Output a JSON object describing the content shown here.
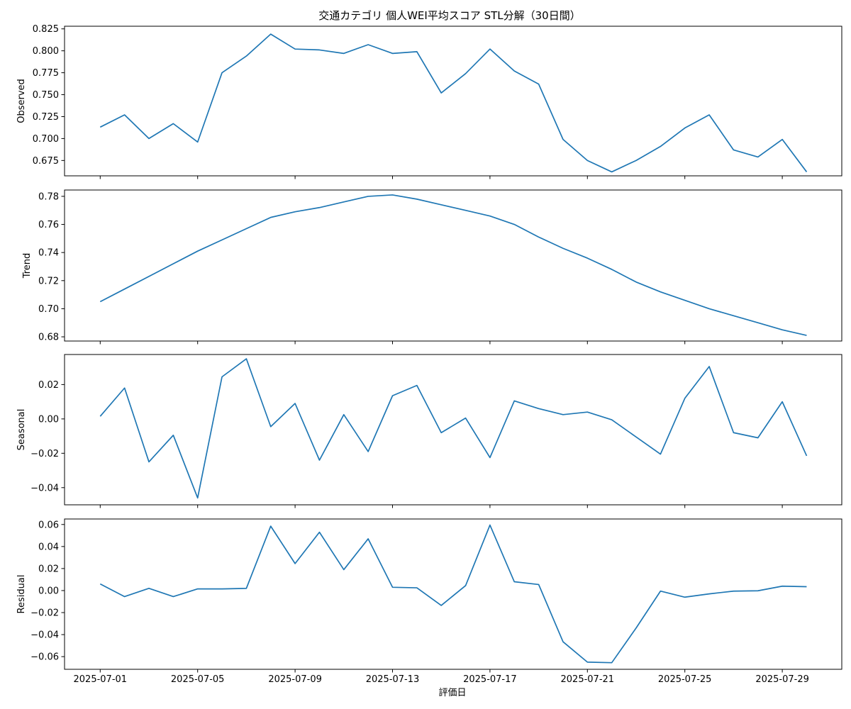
{
  "chart_data": {
    "type": "line",
    "title": "交通カテゴリ 個人WEI平均スコア STL分解（30日間）",
    "xlabel": "評価日",
    "x": [
      "2025-07-01",
      "2025-07-02",
      "2025-07-03",
      "2025-07-04",
      "2025-07-05",
      "2025-07-06",
      "2025-07-07",
      "2025-07-08",
      "2025-07-09",
      "2025-07-10",
      "2025-07-11",
      "2025-07-12",
      "2025-07-13",
      "2025-07-14",
      "2025-07-15",
      "2025-07-16",
      "2025-07-17",
      "2025-07-18",
      "2025-07-19",
      "2025-07-20",
      "2025-07-21",
      "2025-07-22",
      "2025-07-23",
      "2025-07-24",
      "2025-07-25",
      "2025-07-26",
      "2025-07-27",
      "2025-07-28",
      "2025-07-29",
      "2025-07-30"
    ],
    "x_ticks": [
      "2025-07-01",
      "2025-07-05",
      "2025-07-09",
      "2025-07-13",
      "2025-07-17",
      "2025-07-21",
      "2025-07-25",
      "2025-07-29"
    ],
    "color": "#1f77b4",
    "grid": false,
    "panels": [
      {
        "ylabel": "Observed",
        "ylim": [
          0.6575,
          0.828
        ],
        "yticks": [
          "0.825",
          "0.800",
          "0.775",
          "0.750",
          "0.725",
          "0.700",
          "0.675"
        ],
        "ytick_values": [
          0.825,
          0.8,
          0.775,
          0.75,
          0.725,
          0.7,
          0.675
        ],
        "values": [
          0.713,
          0.727,
          0.7,
          0.717,
          0.696,
          0.775,
          0.794,
          0.819,
          0.802,
          0.801,
          0.797,
          0.807,
          0.797,
          0.799,
          0.752,
          0.774,
          0.802,
          0.777,
          0.762,
          0.699,
          0.675,
          0.662,
          0.675,
          0.691,
          0.712,
          0.727,
          0.687,
          0.679,
          0.699,
          0.662
        ]
      },
      {
        "ylabel": "Trend",
        "ylim": [
          0.677,
          0.7845
        ],
        "yticks": [
          "0.78",
          "0.76",
          "0.74",
          "0.72",
          "0.70",
          "0.68"
        ],
        "ytick_values": [
          0.78,
          0.76,
          0.74,
          0.72,
          0.7,
          0.68
        ],
        "values": [
          0.705,
          0.714,
          0.723,
          0.732,
          0.741,
          0.749,
          0.757,
          0.765,
          0.769,
          0.772,
          0.776,
          0.78,
          0.781,
          0.778,
          0.774,
          0.77,
          0.766,
          0.76,
          0.751,
          0.743,
          0.736,
          0.728,
          0.719,
          0.712,
          0.706,
          0.7,
          0.695,
          0.69,
          0.685,
          0.681
        ]
      },
      {
        "ylabel": "Seasonal",
        "ylim": [
          -0.05,
          0.0375
        ],
        "yticks": [
          "0.02",
          "0.00",
          "−0.02",
          "−0.04"
        ],
        "ytick_values": [
          0.02,
          0.0,
          -0.02,
          -0.04
        ],
        "values": [
          0.0015,
          0.018,
          -0.025,
          -0.0095,
          -0.046,
          0.0245,
          0.035,
          -0.0045,
          0.009,
          -0.024,
          0.0025,
          -0.019,
          0.0135,
          0.0195,
          -0.008,
          0.0005,
          -0.0225,
          0.0105,
          0.006,
          0.0025,
          0.004,
          -0.0005,
          -0.0105,
          -0.0205,
          0.012,
          0.0305,
          -0.008,
          -0.011,
          0.01,
          -0.0215
        ]
      },
      {
        "ylabel": "Residual",
        "ylim": [
          -0.0715,
          0.065
        ],
        "yticks": [
          "0.06",
          "0.04",
          "0.02",
          "0.00",
          "−0.02",
          "−0.04",
          "−0.06"
        ],
        "ytick_values": [
          0.06,
          0.04,
          0.02,
          0.0,
          -0.02,
          -0.04,
          -0.06
        ],
        "values": [
          0.006,
          -0.0055,
          0.002,
          -0.0055,
          0.0015,
          0.0015,
          0.002,
          0.0585,
          0.0245,
          0.053,
          0.019,
          0.047,
          0.003,
          0.0025,
          -0.0135,
          0.0045,
          0.0595,
          0.008,
          0.0055,
          -0.0465,
          -0.065,
          -0.0655,
          -0.034,
          -0.0005,
          -0.006,
          -0.003,
          -0.0005,
          -0.0002,
          0.004,
          0.0035
        ]
      }
    ]
  }
}
